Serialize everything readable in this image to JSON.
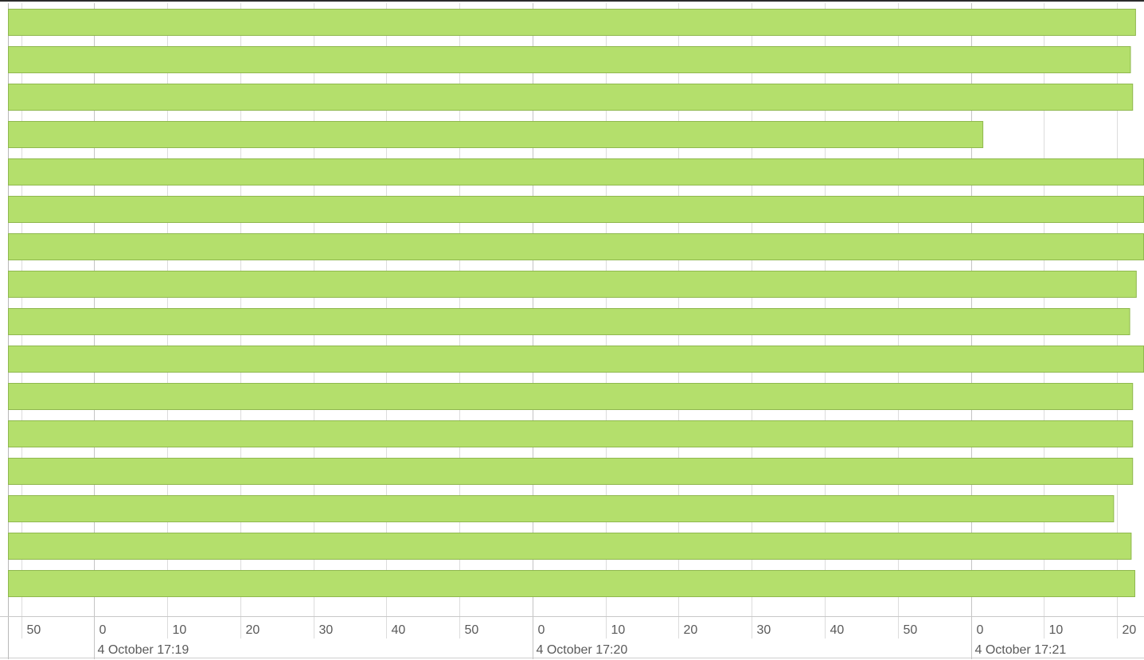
{
  "chart_data": {
    "type": "bar",
    "orientation": "horizontal",
    "x_axis": {
      "type": "time",
      "min": "2024-10-04T17:18:48.2",
      "max": "2024-10-04T17:21:23.7",
      "ticks": [
        {
          "time": "2024-10-04T17:18:50",
          "label": "50"
        },
        {
          "time": "2024-10-04T17:19:00",
          "label": "0",
          "date_label": "4 October 17:19"
        },
        {
          "time": "2024-10-04T17:19:10",
          "label": "10"
        },
        {
          "time": "2024-10-04T17:19:20",
          "label": "20"
        },
        {
          "time": "2024-10-04T17:19:30",
          "label": "30"
        },
        {
          "time": "2024-10-04T17:19:40",
          "label": "40"
        },
        {
          "time": "2024-10-04T17:19:50",
          "label": "50"
        },
        {
          "time": "2024-10-04T17:20:00",
          "label": "0",
          "date_label": "4 October 17:20"
        },
        {
          "time": "2024-10-04T17:20:10",
          "label": "10"
        },
        {
          "time": "2024-10-04T17:20:20",
          "label": "20"
        },
        {
          "time": "2024-10-04T17:20:30",
          "label": "30"
        },
        {
          "time": "2024-10-04T17:20:40",
          "label": "40"
        },
        {
          "time": "2024-10-04T17:20:50",
          "label": "50"
        },
        {
          "time": "2024-10-04T17:21:00",
          "label": "0",
          "date_label": "4 October 17:21"
        },
        {
          "time": "2024-10-04T17:21:10",
          "label": "10"
        },
        {
          "time": "2024-10-04T17:21:20",
          "label": "20"
        }
      ]
    },
    "grid": true,
    "legend": "none",
    "bar_color": "#b4df6c",
    "bar_border_color": "#8fb84e",
    "grid_color": "#dcdcdc",
    "major_grid_color": "#c4c4c4",
    "bars": [
      {
        "start": "2024-10-04T17:18:48.2",
        "end": "2024-10-04T17:21:22.6"
      },
      {
        "start": "2024-10-04T17:18:48.2",
        "end": "2024-10-04T17:21:21.9"
      },
      {
        "start": "2024-10-04T17:18:48.2",
        "end": "2024-10-04T17:21:22.2"
      },
      {
        "start": "2024-10-04T17:18:48.2",
        "end": "2024-10-04T17:21:01.7"
      },
      {
        "start": "2024-10-04T17:18:48.2",
        "end": "2024-10-04T17:21:23.7"
      },
      {
        "start": "2024-10-04T17:18:48.2",
        "end": "2024-10-04T17:21:23.7"
      },
      {
        "start": "2024-10-04T17:18:48.2",
        "end": "2024-10-04T17:21:23.7"
      },
      {
        "start": "2024-10-04T17:18:48.2",
        "end": "2024-10-04T17:21:22.7"
      },
      {
        "start": "2024-10-04T17:18:48.2",
        "end": "2024-10-04T17:21:21.8"
      },
      {
        "start": "2024-10-04T17:18:48.2",
        "end": "2024-10-04T17:21:23.7"
      },
      {
        "start": "2024-10-04T17:18:48.2",
        "end": "2024-10-04T17:21:22.2"
      },
      {
        "start": "2024-10-04T17:18:48.2",
        "end": "2024-10-04T17:21:22.2"
      },
      {
        "start": "2024-10-04T17:18:48.2",
        "end": "2024-10-04T17:21:22.2"
      },
      {
        "start": "2024-10-04T17:18:48.2",
        "end": "2024-10-04T17:21:19.6"
      },
      {
        "start": "2024-10-04T17:18:48.2",
        "end": "2024-10-04T17:21:22.0"
      },
      {
        "start": "2024-10-04T17:18:48.2",
        "end": "2024-10-04T17:21:22.5"
      }
    ]
  }
}
